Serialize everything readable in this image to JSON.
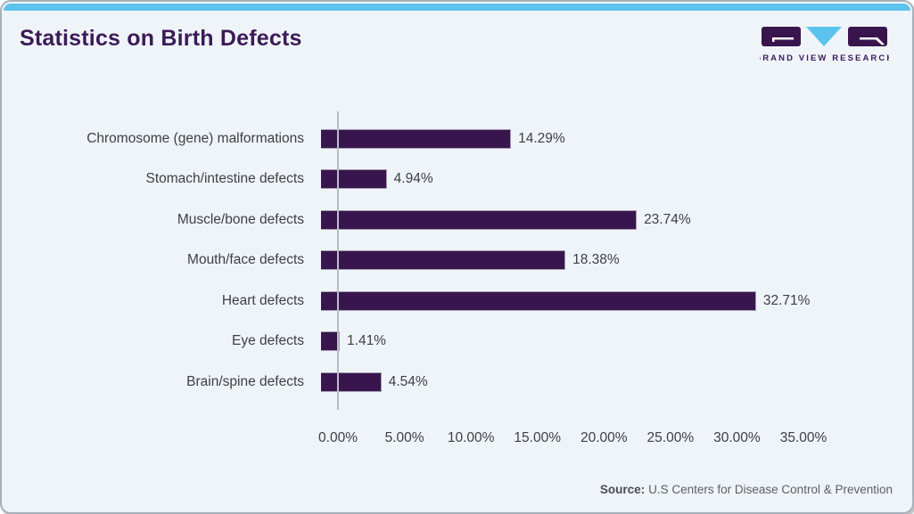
{
  "header": {
    "title": "Statistics on Birth Defects"
  },
  "logo": {
    "brand": "GRAND VIEW RESEARCH"
  },
  "colors": {
    "accent_cyan": "#5cc3ec",
    "bar_fill": "#39154e",
    "bar_border": "#a39cb1",
    "title_purple": "#3b1b57",
    "card_background": "#eff4f9",
    "axis_gray": "#b9bfc7",
    "text_gray": "#3d4045"
  },
  "chart_data": {
    "type": "bar",
    "orientation": "horizontal",
    "title": "Statistics on Birth Defects",
    "categories": [
      "Chromosome (gene) malformations",
      "Stomach/intestine defects",
      "Muscle/bone defects",
      "Mouth/face defects",
      "Heart defects",
      "Eye defects",
      "Brain/spine defects"
    ],
    "values": [
      14.29,
      4.94,
      23.74,
      18.38,
      32.71,
      1.41,
      4.54
    ],
    "value_labels": [
      "14.29%",
      "4.94%",
      "23.74%",
      "18.38%",
      "32.71%",
      "1.41%",
      "4.54%"
    ],
    "x_ticks": [
      "0.00%",
      "5.00%",
      "10.00%",
      "15.00%",
      "20.00%",
      "25.00%",
      "30.00%",
      "35.00%"
    ],
    "x_tick_values": [
      0,
      5,
      10,
      15,
      20,
      25,
      30,
      35
    ],
    "xlim": [
      0,
      35
    ],
    "xlabel": "",
    "ylabel": "",
    "grid": false,
    "legend": false,
    "data_labels": true
  },
  "footer": {
    "source_label": "Source:",
    "source_text": "U.S Centers for Disease Control & Prevention"
  }
}
